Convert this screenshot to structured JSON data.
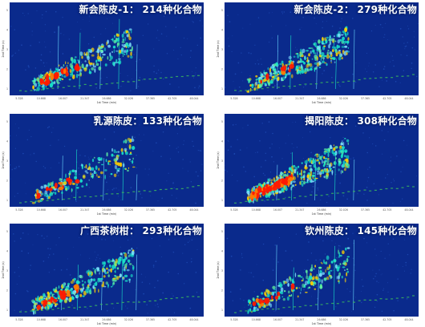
{
  "chart_data": [
    {
      "type": "heatmap",
      "title": "新会陈皮-1： 214种化合物",
      "xlabel": "1st Time (min)",
      "ylabel": "2nd Time (s)",
      "x_ticks": [
        "5.328",
        "10.668",
        "16.007",
        "21.347",
        "26.686",
        "32.026",
        "37.365",
        "42.705",
        "48.044"
      ],
      "y_ticks": [
        "1",
        "2",
        "3",
        "4",
        "5"
      ],
      "compounds": 214
    },
    {
      "type": "heatmap",
      "title": "新会陈皮-2： 279种化合物",
      "xlabel": "1st Time (min)",
      "ylabel": "2nd Time (s)",
      "x_ticks": [
        "5.328",
        "10.668",
        "16.007",
        "21.347",
        "26.686",
        "32.026",
        "37.365",
        "42.705",
        "48.044"
      ],
      "y_ticks": [
        "1",
        "2",
        "3",
        "4",
        "5"
      ],
      "compounds": 279
    },
    {
      "type": "heatmap",
      "title": "乳源陈皮：133种化合物",
      "xlabel": "1st Time (min)",
      "ylabel": "2nd Time (s)",
      "x_ticks": [
        "5.328",
        "10.668",
        "16.007",
        "21.347",
        "26.686",
        "32.026",
        "37.365",
        "42.705",
        "48.044"
      ],
      "y_ticks": [
        "1",
        "2",
        "3",
        "4",
        "5"
      ],
      "compounds": 133
    },
    {
      "type": "heatmap",
      "title": "揭阳陈皮： 308种化合物",
      "xlabel": "1st Time (min)",
      "ylabel": "2nd Time (s)",
      "x_ticks": [
        "5.328",
        "10.668",
        "16.007",
        "21.347",
        "26.686",
        "32.026",
        "37.365",
        "42.705",
        "48.044"
      ],
      "y_ticks": [
        "1",
        "2",
        "3",
        "4",
        "5"
      ],
      "compounds": 308
    },
    {
      "type": "heatmap",
      "title": "广西茶树柑： 293种化合物",
      "xlabel": "1st Time (min)",
      "ylabel": "2nd Time (s)",
      "x_ticks": [
        "5.328",
        "10.668",
        "16.007",
        "21.347",
        "26.686",
        "32.026",
        "37.365",
        "42.705",
        "48.044"
      ],
      "y_ticks": [
        "1",
        "2",
        "3",
        "4",
        "5"
      ],
      "compounds": 293
    },
    {
      "type": "heatmap",
      "title": "钦州陈皮： 145种化合物",
      "xlabel": "1st Time (min)",
      "ylabel": "2nd Time (s)",
      "x_ticks": [
        "5.328",
        "10.668",
        "16.007",
        "21.347",
        "26.686",
        "32.026",
        "37.365",
        "42.705",
        "48.044"
      ],
      "y_ticks": [
        "1",
        "2",
        "3",
        "4",
        "5"
      ],
      "compounds": 145
    }
  ],
  "colors": {
    "background": "#0a2a8c",
    "peak_high": "#ff1a00",
    "peak_mid": "#ffd200",
    "peak_low": "#19e3c8",
    "baseline": "#3dbf5a"
  }
}
